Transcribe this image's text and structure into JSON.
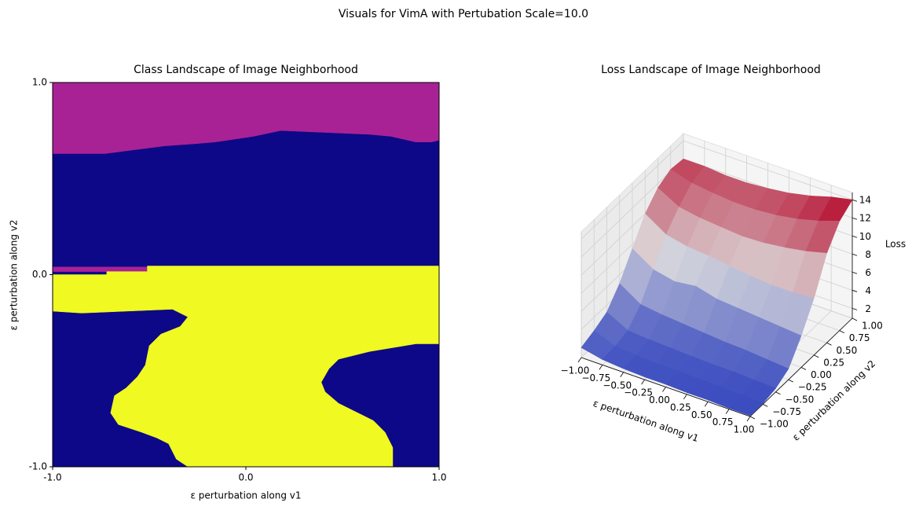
{
  "title": "Visuals for VimA with Pertubation Scale=10.0",
  "chart_data": [
    {
      "type": "class-map",
      "title": "Class Landscape of Image Neighborhood",
      "xlabel": "ε perturbation along v1",
      "ylabel": "ε perturbation along v2",
      "xlim": [
        -1,
        1
      ],
      "ylim": [
        -1,
        1
      ],
      "xticks": [
        {
          "value": -1,
          "label": "-1.0"
        },
        {
          "value": 0,
          "label": "0.0"
        },
        {
          "value": 1,
          "label": "1.0"
        }
      ],
      "yticks": [
        {
          "value": -1,
          "label": "-1.0"
        },
        {
          "value": 0,
          "label": "0.0"
        },
        {
          "value": 1,
          "label": "1.0"
        }
      ],
      "regions": [
        {
          "color": "#0d0887",
          "points": [
            [
              -1,
              -1
            ],
            [
              1,
              -1
            ],
            [
              1,
              1
            ],
            [
              -1,
              1
            ]
          ]
        },
        {
          "color": "#a82296",
          "points": [
            [
              -1,
              1
            ],
            [
              1,
              1
            ],
            [
              1,
              0.7
            ],
            [
              0.96,
              0.69
            ],
            [
              0.88,
              0.69
            ],
            [
              0.75,
              0.72
            ],
            [
              0.64,
              0.73
            ],
            [
              0.18,
              0.75
            ],
            [
              0.04,
              0.72
            ],
            [
              -0.16,
              0.69
            ],
            [
              -0.28,
              0.68
            ],
            [
              -0.42,
              0.67
            ],
            [
              -0.73,
              0.63
            ],
            [
              -1,
              0.63
            ]
          ]
        },
        {
          "color": "#a82296",
          "points": [
            [
              -1,
              0.04
            ],
            [
              -0.51,
              0.04
            ],
            [
              -0.51,
              0.016
            ],
            [
              -1,
              0.016
            ]
          ]
        },
        {
          "color": "#f0f921",
          "points": [
            [
              -1,
              0.0
            ],
            [
              -0.72,
              0.0
            ],
            [
              -0.72,
              0.016
            ],
            [
              -0.51,
              0.016
            ],
            [
              -0.51,
              0.045
            ],
            [
              1,
              0.045
            ],
            [
              1,
              -0.36
            ],
            [
              0.88,
              -0.36
            ],
            [
              0.64,
              -0.4
            ],
            [
              0.48,
              -0.44
            ],
            [
              0.43,
              -0.49
            ],
            [
              0.39,
              -0.56
            ],
            [
              0.41,
              -0.61
            ],
            [
              0.48,
              -0.67
            ],
            [
              0.58,
              -0.72
            ],
            [
              0.66,
              -0.76
            ],
            [
              0.72,
              -0.82
            ],
            [
              0.76,
              -0.9
            ],
            [
              0.76,
              -1
            ],
            [
              -0.3,
              -1
            ],
            [
              -0.36,
              -0.96
            ],
            [
              -0.4,
              -0.88
            ],
            [
              -0.46,
              -0.85
            ],
            [
              -0.54,
              -0.82
            ],
            [
              -0.66,
              -0.78
            ],
            [
              -0.7,
              -0.72
            ],
            [
              -0.68,
              -0.63
            ],
            [
              -0.62,
              -0.59
            ],
            [
              -0.56,
              -0.53
            ],
            [
              -0.52,
              -0.47
            ],
            [
              -0.5,
              -0.37
            ],
            [
              -0.44,
              -0.31
            ],
            [
              -0.34,
              -0.27
            ],
            [
              -0.3,
              -0.22
            ],
            [
              -0.38,
              -0.18
            ],
            [
              -0.85,
              -0.2
            ],
            [
              -1,
              -0.19
            ]
          ]
        }
      ]
    },
    {
      "type": "surface3d",
      "title": "Loss Landscape of Image Neighborhood",
      "xlabel": "ε perturbation along v1",
      "ylabel": "ε perturbation along v2",
      "zlabel": "Loss",
      "xlim": [
        -1,
        1
      ],
      "ylim": [
        -1,
        1
      ],
      "zlim": [
        0.9,
        14.8
      ],
      "xticks": [
        {
          "value": -1,
          "label": "−1.00"
        },
        {
          "value": -0.75,
          "label": "−0.75"
        },
        {
          "value": -0.5,
          "label": "−0.50"
        },
        {
          "value": -0.25,
          "label": "−0.25"
        },
        {
          "value": 0,
          "label": "0.00"
        },
        {
          "value": 0.25,
          "label": "0.25"
        },
        {
          "value": 0.5,
          "label": "0.50"
        },
        {
          "value": 0.75,
          "label": "0.75"
        },
        {
          "value": 1,
          "label": "1.00"
        }
      ],
      "yticks": [
        {
          "value": -1,
          "label": "−1.00"
        },
        {
          "value": -0.75,
          "label": "−0.75"
        },
        {
          "value": -0.5,
          "label": "−0.50"
        },
        {
          "value": -0.25,
          "label": "−0.25"
        },
        {
          "value": 0,
          "label": "0.00"
        },
        {
          "value": 0.25,
          "label": "0.25"
        },
        {
          "value": 0.5,
          "label": "0.50"
        },
        {
          "value": 0.75,
          "label": "0.75"
        },
        {
          "value": 1,
          "label": "1.00"
        }
      ],
      "zticks": [
        2,
        4,
        6,
        8,
        10,
        12,
        14
      ],
      "colormap": [
        "#3b4cc0",
        "#dddddd",
        "#b40426"
      ],
      "x": [
        -1,
        -0.75,
        -0.5,
        -0.25,
        0,
        0.25,
        0.5,
        0.75,
        1
      ],
      "y": [
        -1,
        -0.75,
        -0.5,
        -0.25,
        0,
        0.25,
        0.5,
        0.75,
        1
      ],
      "z": [
        [
          2.0,
          1.5,
          1.3,
          1.2,
          1.2,
          1.1,
          1.1,
          1.0,
          1.0
        ],
        [
          2.5,
          1.6,
          1.4,
          1.3,
          1.3,
          1.2,
          1.2,
          1.1,
          1.0
        ],
        [
          3.2,
          2.0,
          1.8,
          1.7,
          1.6,
          1.5,
          1.5,
          1.4,
          1.3
        ],
        [
          5.0,
          3.5,
          3.2,
          3.0,
          2.8,
          2.6,
          2.5,
          2.3,
          2.1
        ],
        [
          7.5,
          6.0,
          5.5,
          5.8,
          5.2,
          5.0,
          4.8,
          4.6,
          4.4
        ],
        [
          10.0,
          8.5,
          8.0,
          7.8,
          7.5,
          7.2,
          7.0,
          7.0,
          7.2
        ],
        [
          11.5,
          10.2,
          9.8,
          9.6,
          9.4,
          9.5,
          9.8,
          10.2,
          10.8
        ],
        [
          12.2,
          11.5,
          11.2,
          11.0,
          11.0,
          11.2,
          11.6,
          12.2,
          13.0
        ],
        [
          12.0,
          12.0,
          11.8,
          11.8,
          12.0,
          12.3,
          12.8,
          13.5,
          14.0
        ]
      ]
    }
  ]
}
